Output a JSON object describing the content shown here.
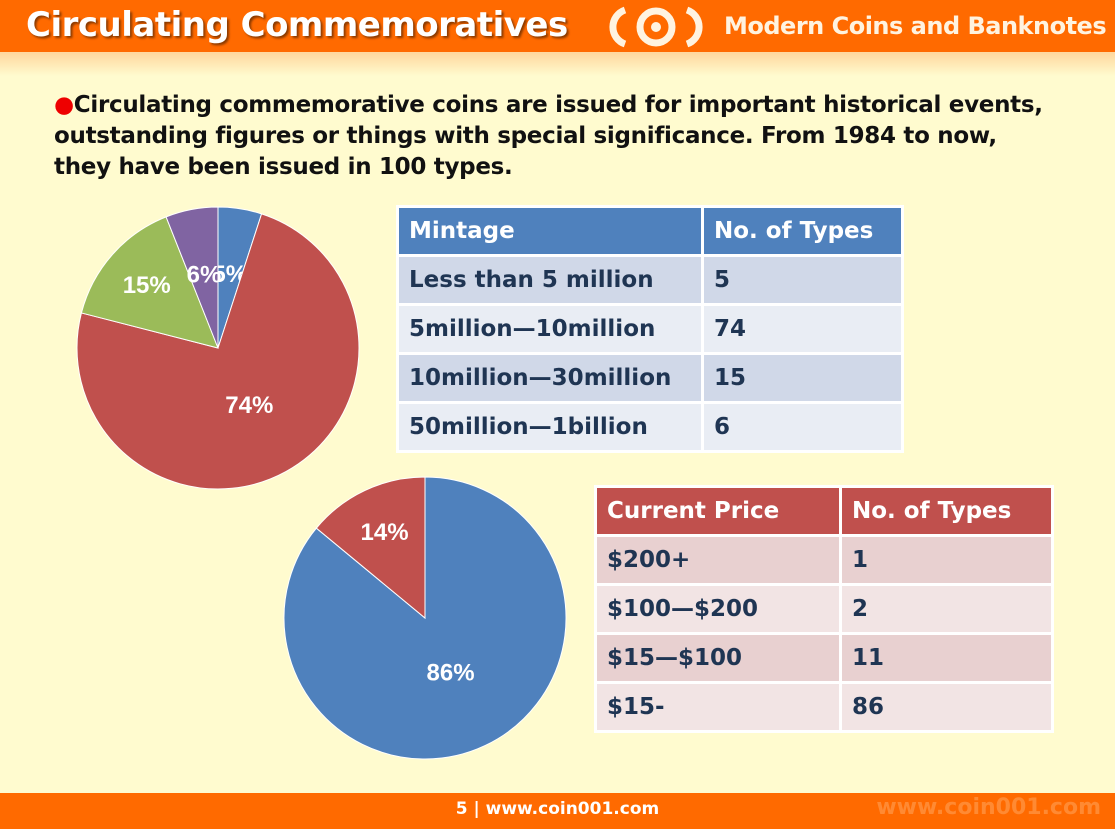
{
  "header": {
    "title": "Circulating Commemoratives",
    "subtitle": "Modern Coins and Banknotes"
  },
  "intro": "Circulating commemorative coins are issued for important historical events, outstanding figures or things with special significance. From 1984 to now, they have been issued in 100 types.",
  "table_mintage": {
    "headers": [
      "Mintage",
      "No. of Types"
    ],
    "rows": [
      [
        "Less than  5 million",
        "5"
      ],
      [
        "5million—10million",
        "74"
      ],
      [
        "10million—30million",
        "15"
      ],
      [
        "50million—1billion",
        "6"
      ]
    ]
  },
  "table_price": {
    "headers": [
      "Current Price",
      "No. of Types"
    ],
    "rows": [
      [
        "$200+",
        "1"
      ],
      [
        "$100—$200",
        "2"
      ],
      [
        "$15—$100",
        "11"
      ],
      [
        "$15-",
        "86"
      ]
    ]
  },
  "chart_data": [
    {
      "type": "pie",
      "title": "Mintage",
      "slices": [
        {
          "label": "5%",
          "value": 5,
          "color": "#4f81bd"
        },
        {
          "label": "74%",
          "value": 74,
          "color": "#c0504d"
        },
        {
          "label": "15%",
          "value": 15,
          "color": "#9bbb59"
        },
        {
          "label": "6%",
          "value": 6,
          "color": "#8064a2"
        }
      ]
    },
    {
      "type": "pie",
      "title": "Current Price",
      "slices": [
        {
          "label": "86%",
          "value": 86,
          "color": "#4f81bd"
        },
        {
          "label": "14%",
          "value": 14,
          "color": "#c0504d"
        }
      ]
    }
  ],
  "footer": {
    "text": "5  |  www.coin001.com",
    "watermark": "www.coin001.com"
  }
}
